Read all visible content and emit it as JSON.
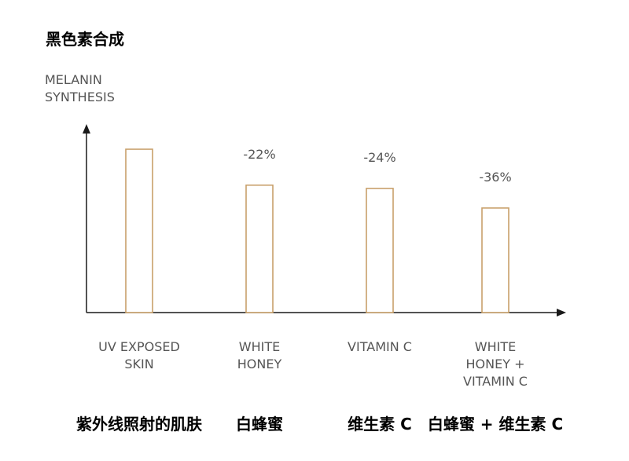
{
  "page": {
    "title": "黑色素合成"
  },
  "chart_data": {
    "type": "bar",
    "title": "黑色素合成",
    "ylabel_lines": [
      "MELANIN",
      "SYNTHESIS"
    ],
    "categories": [
      {
        "en_lines": [
          "UV EXPOSED",
          "SKIN"
        ],
        "cn": "紫外线照射的肌肤"
      },
      {
        "en_lines": [
          "WHITE",
          "HONEY"
        ],
        "cn": "白蜂蜜"
      },
      {
        "en_lines": [
          "VITAMIN C"
        ],
        "cn": "维生素 C"
      },
      {
        "en_lines": [
          "WHITE",
          "HONEY +",
          "VITAMIN C"
        ],
        "cn": "白蜂蜜 + 维生素 C"
      }
    ],
    "values": [
      100,
      78,
      76,
      64
    ],
    "data_labels": [
      "",
      "-22%",
      "-24%",
      "-36%"
    ],
    "ylim": [
      0,
      125
    ],
    "grid": false,
    "colors": {
      "bar_stroke": "#c8a06a",
      "bar_fill": "#ffffff",
      "axis": "#1a1a1a",
      "text": "#555555"
    }
  }
}
